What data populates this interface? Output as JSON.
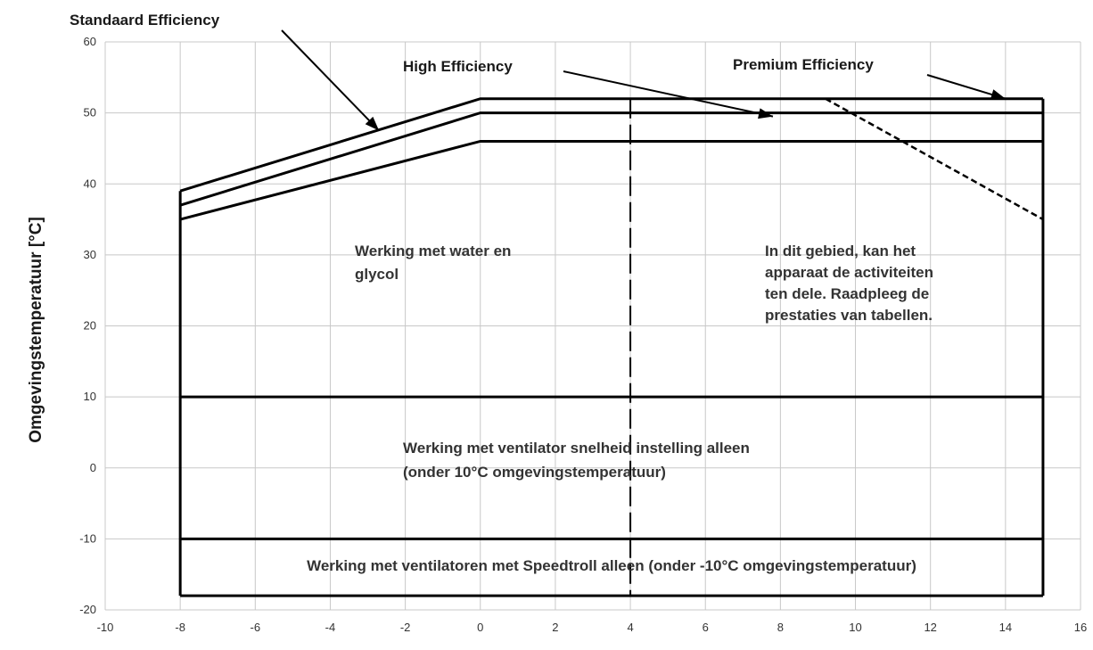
{
  "chart_data": {
    "type": "line",
    "xlim": [
      -10,
      16
    ],
    "ylim": [
      -20,
      60
    ],
    "x_ticks": [
      -10,
      -8,
      -6,
      -4,
      -2,
      0,
      2,
      4,
      6,
      8,
      10,
      12,
      14,
      16
    ],
    "y_ticks": [
      -20,
      -10,
      0,
      10,
      20,
      30,
      40,
      50,
      60
    ],
    "xlabel": "",
    "ylabel": "Omgevingstemperatuur [°C]",
    "grid": true,
    "series": [
      {
        "name": "Standaard Efficiency",
        "x": [
          -8,
          0,
          15
        ],
        "y": [
          35,
          46,
          46
        ]
      },
      {
        "name": "High Efficiency",
        "x": [
          -8,
          0,
          15
        ],
        "y": [
          37,
          50,
          50
        ]
      },
      {
        "name": "Premium Efficiency",
        "x": [
          -8,
          0,
          15
        ],
        "y": [
          39,
          52,
          52
        ]
      }
    ],
    "boundaries": {
      "left_edge_x": -8,
      "right_edge_x": 15,
      "bottom_y": -18,
      "horizontal_lines_y": [
        10,
        -10
      ],
      "dashed_vertical_x": 4,
      "dashed_vertical_y_range": [
        -18,
        52
      ],
      "dashed_diagonal": {
        "x": [
          9.2,
          15
        ],
        "y": [
          52,
          35
        ]
      }
    },
    "annotations": {
      "series_labels": [
        {
          "text": "Standaard Efficiency",
          "arrow_target": {
            "x": -2.7,
            "y": 47.5
          }
        },
        {
          "text": "High Efficiency",
          "arrow_target": {
            "x": 7.8,
            "y": 49.5
          }
        },
        {
          "text": "Premium Efficiency",
          "arrow_target": {
            "x": 14,
            "y": 52
          }
        }
      ],
      "regions": [
        {
          "lines": [
            "Werking met water en",
            "glycol"
          ]
        },
        {
          "lines": [
            "In dit gebied, kan het",
            "apparaat de activiteiten",
            "ten dele. Raadpleeg de",
            "prestaties van tabellen."
          ]
        },
        {
          "lines": [
            "Werking met ventilator snelheid instelling alleen",
            "(onder 10°C omgevingstemperatuur)"
          ]
        },
        {
          "lines": [
            "Werking met ventilatoren met Speedtroll alleen (onder -10°C omgevingstemperatuur)"
          ]
        }
      ]
    },
    "colors": {
      "line": "#000000",
      "grid": "#c8c8c8",
      "text": "#1a1a1a"
    }
  }
}
